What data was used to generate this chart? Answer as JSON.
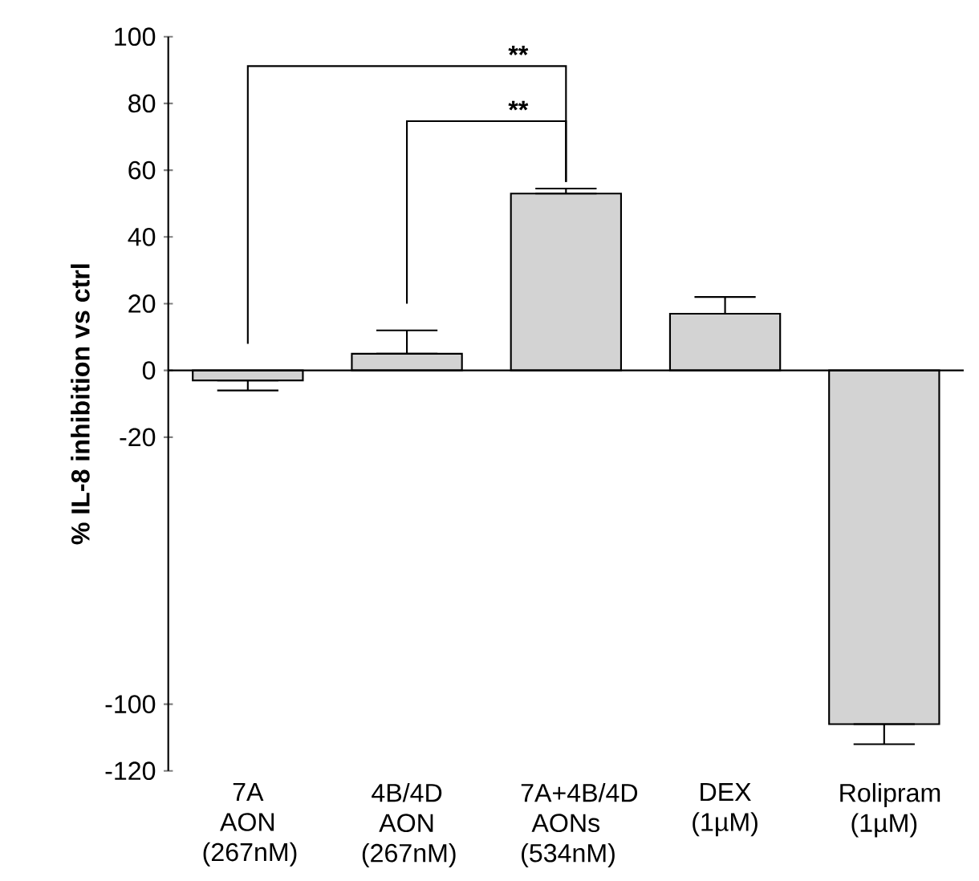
{
  "chart_data": {
    "type": "bar",
    "ylabel": "% IL-8 inhibition vs ctrl",
    "categories": [
      "7A AON (267nM)",
      "4B/4D AON (267nM)",
      "7A+4B/4D AONs (534nM)",
      "DEX (1µM)",
      "Rolipram (1µM)"
    ],
    "values": [
      -3,
      5,
      53,
      17,
      -106
    ],
    "color": "#d3d3d3",
    "errors": [
      [
        -6,
        -3
      ],
      [
        5,
        12
      ],
      [
        53,
        54.5
      ],
      [
        17,
        22
      ],
      [
        -112,
        -106
      ]
    ],
    "ylim": [
      -120,
      100
    ],
    "yticks": [
      -120,
      -100,
      -20,
      0,
      20,
      40,
      60,
      80,
      100
    ],
    "annotations": [
      "**",
      "**"
    ]
  }
}
